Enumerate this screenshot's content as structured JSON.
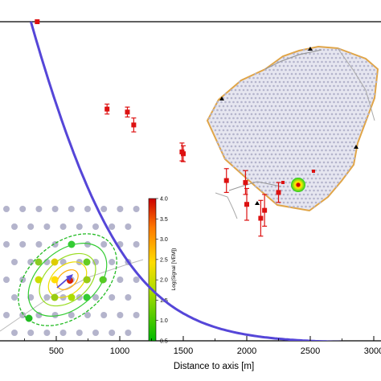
{
  "chart_data": {
    "type": "scatter",
    "xlabel": "Distance to axis [m]",
    "ylabel": "",
    "xlim": [
      240,
      3060
    ],
    "x_ticks": [
      "500",
      "1000",
      "1500",
      "2000",
      "2500",
      "3000"
    ],
    "grid": false,
    "series": [
      {
        "values": [
          {
            "x": 350,
            "y": 1.62,
            "err": 0.0
          },
          {
            "x": 900,
            "y": 1.18,
            "err": 0.025
          },
          {
            "x": 1060,
            "y": 1.165,
            "err": 0.025
          },
          {
            "x": 1110,
            "y": 1.1,
            "err": 0.035
          },
          {
            "x": 1490,
            "y": 0.964,
            "err": 0.045
          },
          {
            "x": 1500,
            "y": 0.955,
            "err": 0.04
          },
          {
            "x": 1840,
            "y": 0.82,
            "err": 0.06
          },
          {
            "x": 1990,
            "y": 0.81,
            "err": 0.06
          },
          {
            "x": 2000,
            "y": 0.7,
            "err": 0.08
          },
          {
            "x": 2110,
            "y": 0.63,
            "err": 0.09
          },
          {
            "x": 2140,
            "y": 0.67,
            "err": 0.08
          },
          {
            "x": 2250,
            "y": 0.76,
            "err": 0.05
          }
        ]
      }
    ],
    "fit_curve": {
      "A": 3.26,
      "k": 0.0026
    },
    "colorbar": {
      "title": "Log(Signal [VEM])",
      "ticks": [
        "0.5",
        "1.0",
        "1.5",
        "2.0",
        "2.5",
        "3.0",
        "3.5",
        "4.0"
      ],
      "range": [
        0.5,
        4.0
      ]
    }
  },
  "colors": {
    "fit_line": "#5546d8",
    "points": "#dd1111",
    "array_dots": "#b4b4cc",
    "hexagon_border": "#e0a548"
  }
}
